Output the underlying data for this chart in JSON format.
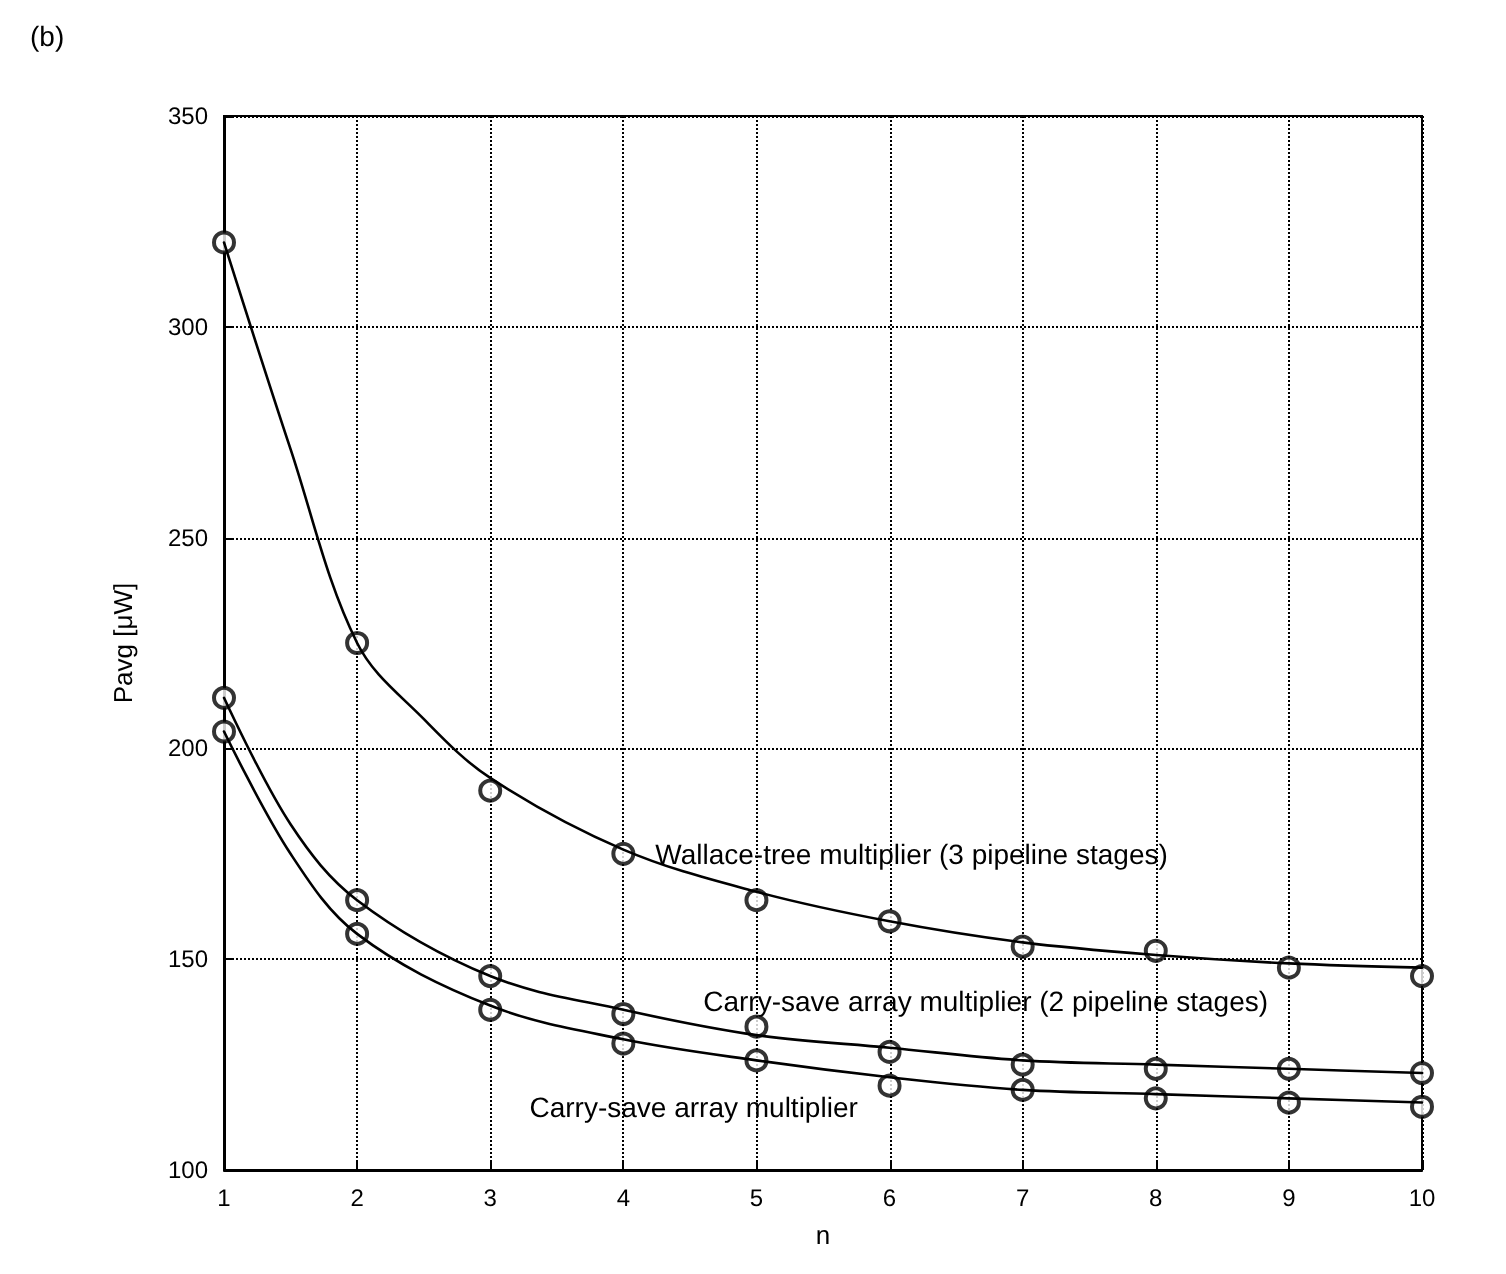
{
  "chart_data": {
    "type": "scatter",
    "title": "(b)",
    "xlabel": "n",
    "ylabel": "Pavg [μW]",
    "xlim": [
      1,
      10
    ],
    "xticks": [
      1,
      2,
      3,
      4,
      5,
      6,
      7,
      8,
      9,
      10
    ],
    "ylim": [
      100,
      350
    ],
    "yticks": [
      100,
      150,
      200,
      250,
      300,
      350
    ],
    "grid": true,
    "marker": "circle",
    "series": [
      {
        "color": "#000000",
        "x": [
          1,
          2,
          3,
          4,
          5,
          6,
          7,
          8,
          9,
          10
        ],
        "values": [
          320,
          225,
          190,
          175,
          164,
          159,
          153,
          152,
          148,
          146
        ]
      },
      {
        "color": "#000000",
        "x": [
          1,
          2,
          3,
          4,
          5,
          6,
          7,
          8,
          9,
          10
        ],
        "values": [
          212,
          164,
          146,
          137,
          134,
          128,
          125,
          124,
          124,
          123
        ]
      },
      {
        "color": "#000000",
        "x": [
          1,
          2,
          3,
          4,
          5,
          6,
          7,
          8,
          9,
          10
        ],
        "values": [
          204,
          156,
          138,
          130,
          126,
          120,
          119,
          117,
          116,
          115
        ]
      },
      {
        "type": "line",
        "color": "#000000",
        "marker": "none",
        "line_style": "solid",
        "x": [
          1,
          1.5,
          2,
          2.5,
          3,
          4,
          5,
          6,
          7,
          8,
          9,
          10
        ],
        "values": [
          320,
          271,
          225,
          207,
          193,
          176,
          166,
          159,
          154,
          151,
          149,
          148
        ]
      },
      {
        "type": "line",
        "color": "#000000",
        "marker": "none",
        "line_style": "solid",
        "x": [
          1,
          1.5,
          2,
          3,
          4,
          5,
          6,
          7,
          8,
          9,
          10
        ],
        "values": [
          212,
          182,
          164,
          146,
          138,
          132,
          129,
          126,
          125,
          124,
          123
        ]
      },
      {
        "type": "line",
        "color": "#000000",
        "marker": "none",
        "line_style": "solid",
        "x": [
          1,
          1.5,
          2,
          3,
          4,
          5,
          6,
          7,
          8,
          9,
          10
        ],
        "values": [
          204,
          175,
          156,
          139,
          131,
          126,
          122,
          119,
          118,
          117,
          116
        ]
      }
    ],
    "annotations": [
      "Wallace-tree multiplier (3 pipeline stages)",
      "Carry-save array multiplier (2 pipeline stages)",
      "Carry-save array multiplier"
    ]
  }
}
